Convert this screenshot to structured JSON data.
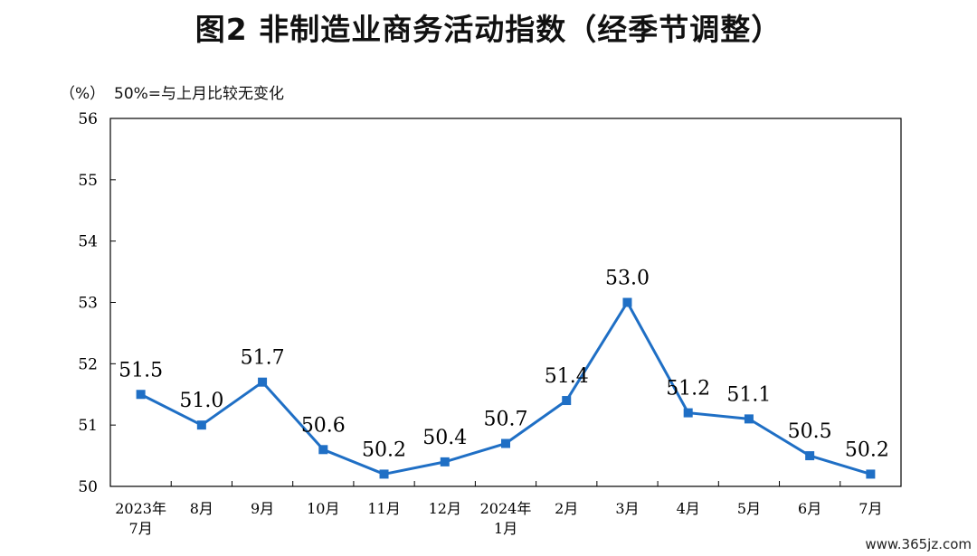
{
  "title": "图2  非制造业商务活动指数（经季节调整）",
  "unit": "（%）",
  "note": "50%=与上月比较无变化",
  "watermark": "www.365jz.com",
  "colors": {
    "line": "#1f6fc5",
    "axis": "#000000"
  },
  "chart_data": {
    "type": "line",
    "title": "图2  非制造业商务活动指数（经季节调整）",
    "ylabel": "（%）",
    "ylim": [
      50,
      56
    ],
    "yticks": [
      50,
      51,
      52,
      53,
      54,
      55,
      56
    ],
    "grid": false,
    "categories": [
      [
        "2023年",
        "7月"
      ],
      [
        "8月"
      ],
      [
        "9月"
      ],
      [
        "10月"
      ],
      [
        "11月"
      ],
      [
        "12月"
      ],
      [
        "2024年",
        "1月"
      ],
      [
        "2月"
      ],
      [
        "3月"
      ],
      [
        "4月"
      ],
      [
        "5月"
      ],
      [
        "6月"
      ],
      [
        "7月"
      ]
    ],
    "values": [
      51.5,
      51.0,
      51.7,
      50.6,
      50.2,
      50.4,
      50.7,
      51.4,
      53.0,
      51.2,
      51.1,
      50.5,
      50.2
    ],
    "labels": [
      "51.5",
      "51.0",
      "51.7",
      "50.6",
      "50.2",
      "50.4",
      "50.7",
      "51.4",
      "53.0",
      "51.2",
      "51.1",
      "50.5",
      "50.2"
    ]
  }
}
